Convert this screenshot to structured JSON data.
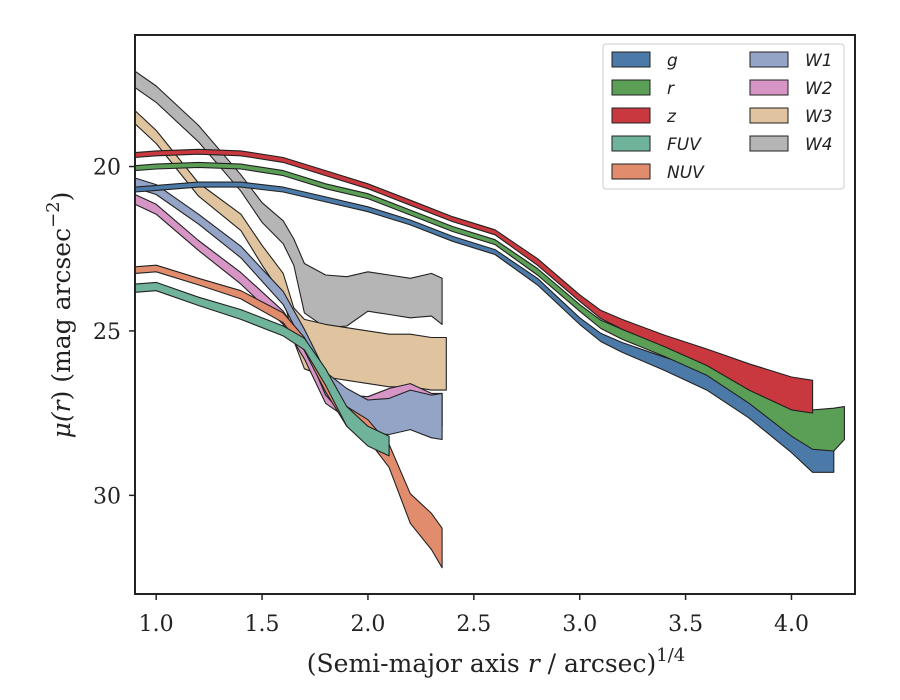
{
  "chart_data": {
    "type": "area",
    "xlabel": "(Semi-major axis r / arcsec)^1/4",
    "ylabel": "μ(r) (mag arcsec^−2)",
    "xlim": [
      0.9,
      4.3
    ],
    "ylim": [
      33.0,
      16.0
    ],
    "y_inverted": true,
    "x_ticks": [
      1.0,
      1.5,
      2.0,
      2.5,
      3.0,
      3.5,
      4.0
    ],
    "x_tick_labels": [
      "1.0",
      "1.5",
      "2.0",
      "2.5",
      "3.0",
      "3.5",
      "4.0"
    ],
    "y_ticks": [
      20,
      25,
      30
    ],
    "y_tick_labels": [
      "20",
      "25",
      "30"
    ],
    "grid": false,
    "legend": {
      "placement": "top-right",
      "columns": 2
    },
    "series": [
      {
        "name": "g",
        "color": "#4c7aa8",
        "x": [
          0.9,
          1.0,
          1.2,
          1.4,
          1.6,
          1.8,
          2.0,
          2.2,
          2.4,
          2.6,
          2.8,
          3.0,
          3.1,
          3.2,
          3.4,
          3.6,
          3.8,
          4.0,
          4.1,
          4.2
        ],
        "y": [
          20.7,
          20.65,
          20.55,
          20.55,
          20.7,
          21.0,
          21.3,
          21.7,
          22.2,
          22.6,
          23.5,
          24.7,
          25.2,
          25.5,
          26.0,
          26.5,
          27.2,
          28.2,
          28.8,
          28.8
        ],
        "w": [
          0.15,
          0.15,
          0.15,
          0.15,
          0.15,
          0.15,
          0.15,
          0.15,
          0.15,
          0.15,
          0.2,
          0.2,
          0.25,
          0.3,
          0.4,
          0.6,
          0.9,
          1.0,
          1.0,
          1.0
        ]
      },
      {
        "name": "r",
        "color": "#5b9e55",
        "x": [
          0.9,
          1.0,
          1.2,
          1.4,
          1.6,
          1.8,
          2.0,
          2.2,
          2.4,
          2.6,
          2.8,
          3.0,
          3.1,
          3.2,
          3.4,
          3.6,
          3.8,
          4.0,
          4.1,
          4.2,
          4.25
        ],
        "y": [
          20.05,
          20.0,
          19.95,
          20.0,
          20.2,
          20.6,
          20.9,
          21.4,
          21.9,
          22.3,
          23.2,
          24.3,
          24.8,
          25.1,
          25.6,
          26.1,
          26.8,
          27.7,
          28.0,
          28.0,
          27.8
        ],
        "w": [
          0.15,
          0.15,
          0.15,
          0.15,
          0.15,
          0.15,
          0.15,
          0.15,
          0.15,
          0.15,
          0.2,
          0.2,
          0.25,
          0.3,
          0.35,
          0.5,
          0.8,
          1.0,
          1.2,
          1.3,
          1.0
        ]
      },
      {
        "name": "z",
        "color": "#c9383e",
        "x": [
          0.9,
          1.0,
          1.2,
          1.4,
          1.6,
          1.8,
          2.0,
          2.2,
          2.4,
          2.6,
          2.8,
          3.0,
          3.1,
          3.2,
          3.4,
          3.6,
          3.8,
          4.0,
          4.1
        ],
        "y": [
          19.65,
          19.6,
          19.55,
          19.6,
          19.8,
          20.2,
          20.6,
          21.1,
          21.6,
          22.0,
          22.9,
          24.0,
          24.5,
          24.8,
          25.3,
          25.8,
          26.4,
          26.9,
          27.0
        ],
        "w": [
          0.15,
          0.15,
          0.15,
          0.15,
          0.15,
          0.15,
          0.15,
          0.15,
          0.15,
          0.15,
          0.2,
          0.2,
          0.25,
          0.3,
          0.35,
          0.5,
          0.8,
          1.0,
          1.0
        ]
      },
      {
        "name": "FUV",
        "color": "#6fb39b",
        "x": [
          0.9,
          1.0,
          1.2,
          1.4,
          1.6,
          1.7,
          1.8,
          1.9,
          2.0,
          2.1
        ],
        "y": [
          23.7,
          23.65,
          24.1,
          24.5,
          25.0,
          25.4,
          26.4,
          27.6,
          28.2,
          28.5
        ],
        "w": [
          0.25,
          0.25,
          0.25,
          0.3,
          0.3,
          0.35,
          0.5,
          0.6,
          0.6,
          0.6
        ]
      },
      {
        "name": "NUV",
        "color": "#e28c6e",
        "x": [
          0.9,
          1.0,
          1.2,
          1.4,
          1.6,
          1.7,
          1.8,
          1.9,
          2.0,
          2.1,
          2.2,
          2.3,
          2.35
        ],
        "y": [
          23.15,
          23.1,
          23.5,
          23.9,
          24.6,
          25.4,
          26.6,
          27.6,
          28.0,
          28.8,
          30.4,
          31.1,
          31.6
        ],
        "w": [
          0.2,
          0.2,
          0.2,
          0.25,
          0.3,
          0.4,
          0.5,
          0.6,
          0.6,
          0.7,
          0.9,
          1.1,
          1.2
        ]
      },
      {
        "name": "W1",
        "color": "#94a4c7",
        "x": [
          0.9,
          1.0,
          1.2,
          1.4,
          1.6,
          1.7,
          1.8,
          1.9,
          2.0,
          2.1,
          2.2,
          2.3,
          2.35
        ],
        "y": [
          20.5,
          20.7,
          21.6,
          22.6,
          24.0,
          25.2,
          26.6,
          27.2,
          27.6,
          27.6,
          27.4,
          27.6,
          27.6
        ],
        "w": [
          0.3,
          0.3,
          0.3,
          0.35,
          0.4,
          0.5,
          0.7,
          0.9,
          1.0,
          1.1,
          1.2,
          1.3,
          1.4
        ]
      },
      {
        "name": "W2",
        "color": "#d795c6",
        "x": [
          0.9,
          1.0,
          1.2,
          1.4,
          1.6,
          1.7,
          1.8,
          1.9,
          2.0,
          2.1,
          2.2,
          2.3,
          2.35
        ],
        "y": [
          21.0,
          21.3,
          22.4,
          23.4,
          24.6,
          25.6,
          26.9,
          27.3,
          27.4,
          27.2,
          27.1,
          27.4,
          27.4
        ],
        "w": [
          0.3,
          0.3,
          0.3,
          0.35,
          0.4,
          0.5,
          0.6,
          0.7,
          0.8,
          0.9,
          1.0,
          1.0,
          1.0
        ]
      },
      {
        "name": "W3",
        "color": "#dfc49f",
        "x": [
          0.9,
          1.0,
          1.2,
          1.4,
          1.5,
          1.6,
          1.65,
          1.7,
          1.8,
          1.9,
          2.0,
          2.1,
          2.2,
          2.3,
          2.37
        ],
        "y": [
          18.5,
          19.1,
          20.7,
          21.7,
          22.7,
          23.6,
          24.8,
          25.4,
          25.6,
          25.7,
          25.8,
          25.9,
          25.9,
          26.0,
          26.0
        ],
        "w": [
          0.4,
          0.4,
          0.4,
          0.5,
          0.6,
          0.7,
          1.0,
          1.5,
          1.6,
          1.6,
          1.6,
          1.6,
          1.6,
          1.6,
          1.6
        ]
      },
      {
        "name": "W4",
        "color": "#b5b5b5",
        "x": [
          0.9,
          1.0,
          1.2,
          1.4,
          1.5,
          1.6,
          1.65,
          1.7,
          1.8,
          1.9,
          2.0,
          2.1,
          2.2,
          2.3,
          2.35
        ],
        "y": [
          17.35,
          17.8,
          19.0,
          20.5,
          21.4,
          22.0,
          22.6,
          23.7,
          24.1,
          24.1,
          23.8,
          23.9,
          24.0,
          23.9,
          24.1
        ],
        "w": [
          0.5,
          0.5,
          0.5,
          0.5,
          0.6,
          0.7,
          0.8,
          1.5,
          1.6,
          1.5,
          1.2,
          1.2,
          1.2,
          1.3,
          1.4
        ]
      }
    ]
  }
}
